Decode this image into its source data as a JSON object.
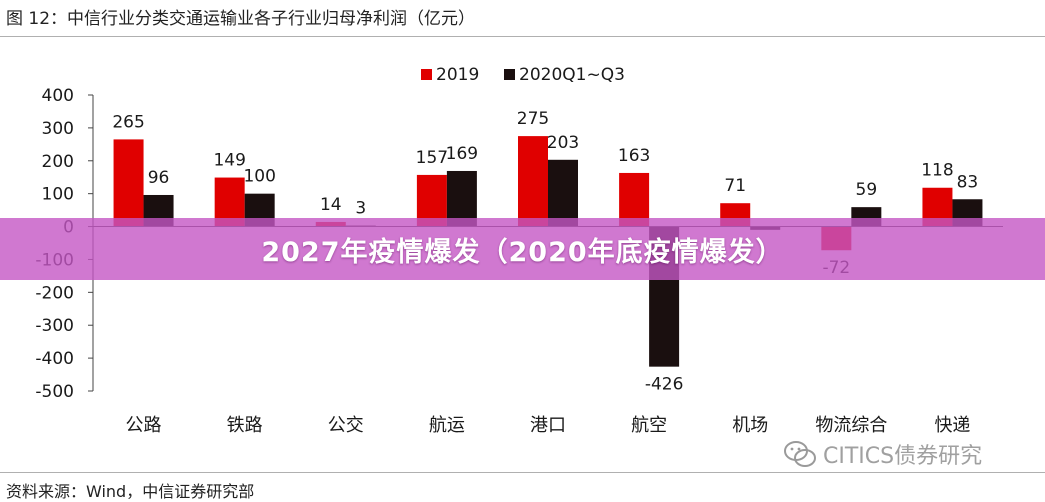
{
  "figure": {
    "title": "图 12：中信行业分类交通运输业各子行业归母净利润（亿元）",
    "source": "资料来源：Wind，中信证券研究部"
  },
  "banner": {
    "text": "2027年疫情爆发（2020年底疫情爆发）"
  },
  "watermark": {
    "text": "CITICS债券研究",
    "icon": "wechat-icon"
  },
  "chart_data": {
    "type": "bar",
    "categories": [
      "公路",
      "铁路",
      "公交",
      "航运",
      "港口",
      "航空",
      "机场",
      "物流综合",
      "快递"
    ],
    "series": [
      {
        "name": "2019",
        "color": "#e00000",
        "values": [
          265,
          149,
          14,
          157,
          275,
          163,
          71,
          -72,
          118
        ]
      },
      {
        "name": "2020Q1~Q3",
        "color": "#1a0f0f",
        "values": [
          96,
          100,
          3,
          169,
          203,
          -426,
          -10,
          59,
          83
        ]
      }
    ],
    "series_labels_shown": [
      [
        true,
        true,
        true,
        true,
        true,
        true,
        true,
        true,
        true
      ],
      [
        true,
        true,
        true,
        true,
        true,
        true,
        false,
        true,
        true
      ]
    ],
    "ylim": [
      -500,
      400
    ],
    "yticks": [
      -500,
      -400,
      -300,
      -200,
      -100,
      0,
      100,
      200,
      300,
      400
    ],
    "legend": "top-center",
    "grid": false
  }
}
